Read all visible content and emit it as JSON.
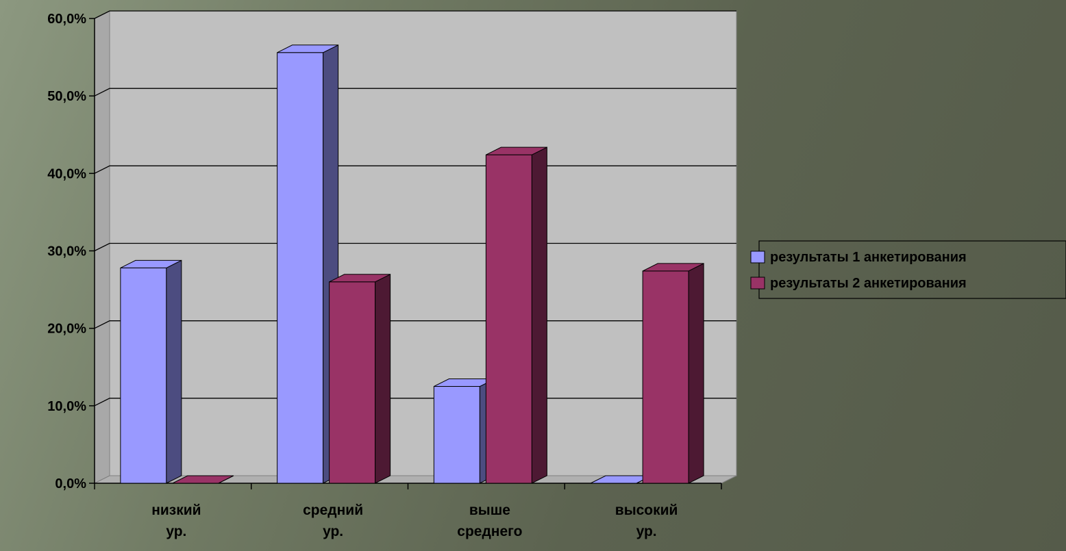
{
  "chart_data": {
    "type": "bar",
    "title": "",
    "xlabel": "",
    "ylabel": "",
    "ylim": [
      0,
      60
    ],
    "y_tick_step": 10,
    "y_tick_labels": [
      "0,0%",
      "10,0%",
      "20,0%",
      "30,0%",
      "40,0%",
      "50,0%",
      "60,0%"
    ],
    "grid": true,
    "legend_position": "right",
    "categories": [
      [
        "низкий",
        "ур."
      ],
      [
        "средний",
        "ур."
      ],
      [
        "выше",
        "среднего"
      ],
      [
        "высокий",
        "ур."
      ]
    ],
    "series": [
      {
        "name": "результаты 1 анкетирования",
        "values": [
          27.8,
          55.6,
          12.5,
          0.0
        ],
        "color": "#9999ff",
        "side_color": "#4c4c80"
      },
      {
        "name": "результаты 2 анкетирования",
        "values": [
          0.0,
          26.0,
          42.4,
          27.4
        ],
        "color": "#993366",
        "side_color": "#4d1933"
      }
    ]
  }
}
